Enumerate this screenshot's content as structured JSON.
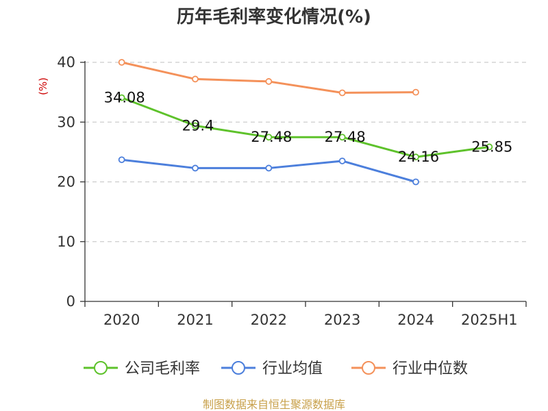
{
  "chart_data": {
    "type": "line",
    "title": "历年毛利率变化情况(%)",
    "ylabel": "(%)",
    "xlabel": "",
    "categories": [
      "2020",
      "2021",
      "2022",
      "2023",
      "2024",
      "2025H1"
    ],
    "ylim": [
      0,
      40
    ],
    "yticks": [
      "0",
      "10",
      "20",
      "30",
      "40"
    ],
    "grid": true,
    "legend_position": "bottom",
    "series": [
      {
        "name": "公司毛利率",
        "color": "#5ec22b",
        "values": [
          34.08,
          29.4,
          27.48,
          27.48,
          24.16,
          25.85
        ],
        "labels": [
          "34.08",
          "29.4",
          "27.48",
          "27.48",
          "24.16",
          "25.85"
        ]
      },
      {
        "name": "行业均值",
        "color": "#4c7fdc",
        "values": [
          23.7,
          22.3,
          22.3,
          23.5,
          20.0,
          null
        ]
      },
      {
        "name": "行业中位数",
        "color": "#f4915a",
        "values": [
          40.0,
          37.2,
          36.8,
          34.9,
          35.0,
          null
        ]
      }
    ],
    "source": "制图数据来自恒生聚源数据库"
  }
}
